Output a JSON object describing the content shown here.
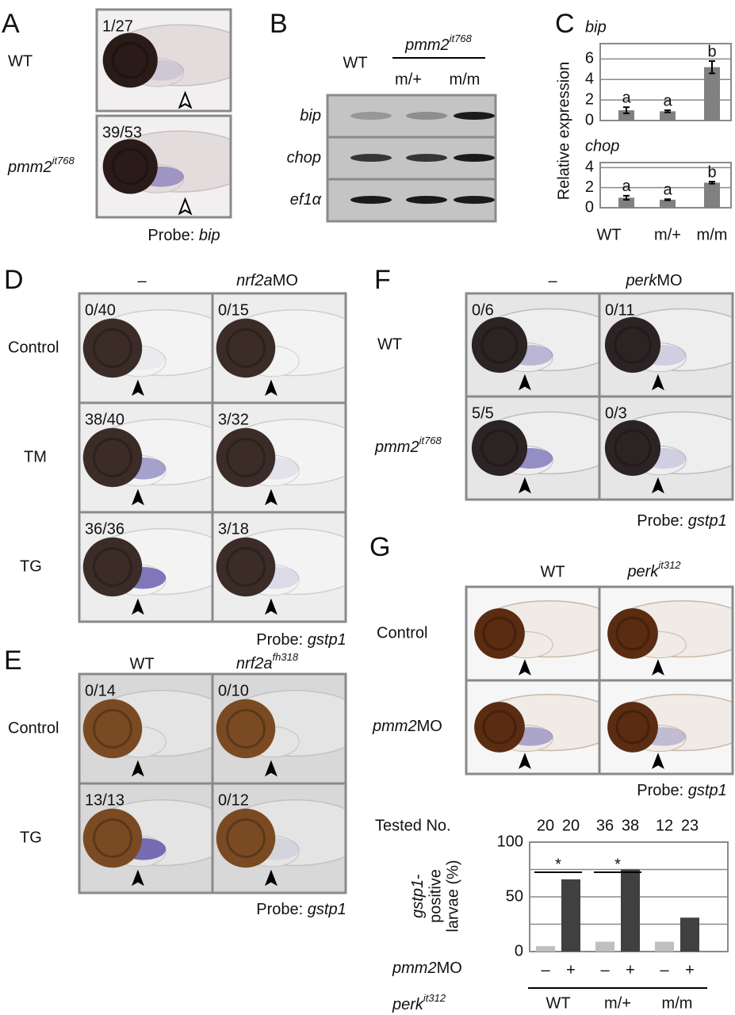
{
  "panels": {
    "A": {
      "label": "A",
      "rows": [
        "WT",
        {
          "gene": "pmm2",
          "allele": "it768"
        }
      ],
      "counts": [
        "1/27",
        "39/53"
      ],
      "probe": {
        "prefix": "Probe: ",
        "gene": "bip"
      }
    },
    "B": {
      "label": "B",
      "columns": [
        "WT"
      ],
      "group": {
        "gene": "pmm2",
        "allele": "it768"
      },
      "group_columns": [
        "m/+",
        "m/m"
      ],
      "rows": [
        {
          "gene": "bip"
        },
        {
          "gene": "chop"
        },
        {
          "gene": "ef1α"
        }
      ]
    },
    "C": {
      "label": "C"
    },
    "D": {
      "label": "D",
      "columns": [
        "–",
        {
          "gene": "nrf2a",
          "suffix": "MO"
        }
      ],
      "rows": [
        "Control",
        "TM",
        "TG"
      ],
      "counts": [
        [
          "0/40",
          "0/15"
        ],
        [
          "38/40",
          "3/32"
        ],
        [
          "36/36",
          "3/18"
        ]
      ],
      "probe": {
        "prefix": "Probe: ",
        "gene": "gstp1"
      }
    },
    "E": {
      "label": "E",
      "columns": [
        "WT",
        {
          "gene": "nrf2a",
          "allele": "fh318"
        }
      ],
      "rows": [
        "Control",
        "TG"
      ],
      "counts": [
        [
          "0/14",
          "0/10"
        ],
        [
          "13/13",
          "0/12"
        ]
      ],
      "probe": {
        "prefix": "Probe: ",
        "gene": "gstp1"
      }
    },
    "F": {
      "label": "F",
      "columns": [
        "–",
        {
          "gene": "perk",
          "suffix": "MO"
        }
      ],
      "rows": [
        "WT",
        {
          "gene": "pmm2",
          "allele": "it768"
        }
      ],
      "counts": [
        [
          "0/6",
          "0/11"
        ],
        [
          "5/5",
          "0/3"
        ]
      ],
      "probe": {
        "prefix": "Probe: ",
        "gene": "gstp1"
      }
    },
    "G": {
      "label": "G",
      "columns": [
        "WT",
        {
          "gene": "perk",
          "allele": "it312"
        }
      ],
      "rows": [
        "Control",
        {
          "gene": "pmm2",
          "suffix": "MO"
        }
      ],
      "probe": {
        "prefix": "Probe: ",
        "gene": "gstp1"
      }
    }
  },
  "chart_data": [
    {
      "type": "bar",
      "title": "bip",
      "ylabel": "Relative expression",
      "values": [
        1.0,
        0.9,
        5.2
      ],
      "errors": [
        0.3,
        0.1,
        0.6
      ],
      "annotations": [
        "a",
        "a",
        "b"
      ],
      "color": "#808080",
      "ylim": [
        0,
        7.5
      ],
      "yticks": [
        0,
        2,
        4,
        6
      ],
      "grid": true
    },
    {
      "type": "bar",
      "title": "chop",
      "categories": [
        "WT",
        "m/+",
        "m/m"
      ],
      "values": [
        1.0,
        0.8,
        2.5
      ],
      "errors": [
        0.2,
        0.05,
        0.1
      ],
      "annotations": [
        "a",
        "a",
        "b"
      ],
      "color": "#808080",
      "ylim": [
        0,
        4.5
      ],
      "yticks": [
        0,
        2,
        4
      ],
      "grid": true
    },
    {
      "type": "bar",
      "header": "Tested No.",
      "tested": [
        20,
        20,
        36,
        38,
        12,
        23
      ],
      "values": [
        5,
        66,
        9,
        75,
        9,
        31
      ],
      "colors": [
        "#bfbfbf",
        "#404040",
        "#bfbfbf",
        "#404040",
        "#bfbfbf",
        "#404040"
      ],
      "ylim": [
        0,
        100
      ],
      "yticks": [
        0,
        50,
        100
      ],
      "minor_yticks": [
        25,
        75
      ],
      "grid": true,
      "ylabel": [
        {
          "gene": "gstp1",
          "suffix": "-"
        },
        "positive",
        "larvae (%)"
      ],
      "significance": [
        "*",
        "*"
      ],
      "treatment": {
        "label": {
          "gene": "pmm2",
          "suffix": "MO"
        },
        "values": [
          "–",
          "+",
          "–",
          "+",
          "–",
          "+"
        ]
      },
      "genotype": {
        "label": {
          "gene": "perk",
          "allele": "it312"
        },
        "groups": [
          "WT",
          "m/+",
          "m/m"
        ]
      }
    }
  ]
}
